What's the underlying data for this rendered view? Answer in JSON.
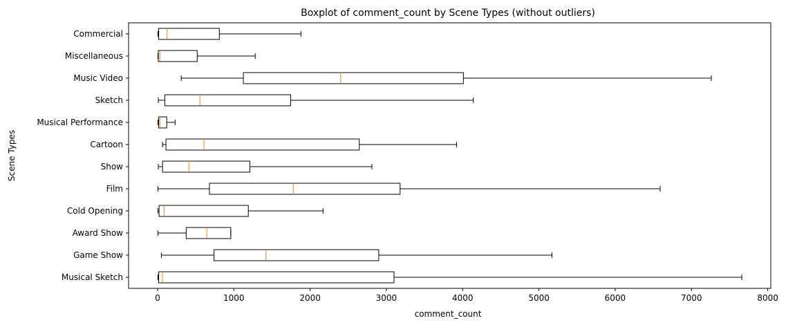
{
  "chart_data": {
    "type": "boxplot",
    "orientation": "horizontal",
    "title": "Boxplot of comment_count by Scene Types (without outliers)",
    "xlabel": "comment_count",
    "ylabel": "Scene Types",
    "xlim": [
      -380,
      8040
    ],
    "xticks": [
      0,
      1000,
      2000,
      3000,
      4000,
      5000,
      6000,
      7000,
      8000
    ],
    "grid": false,
    "colors": {
      "box": "#000000",
      "median": "#ff7f0e"
    },
    "boxes": [
      {
        "label": "Commercial",
        "whislo": 5,
        "q1": 15,
        "med": 125,
        "q3": 810,
        "whishi": 1880
      },
      {
        "label": "Miscellaneous",
        "whislo": 5,
        "q1": 10,
        "med": 30,
        "q3": 520,
        "whishi": 1280
      },
      {
        "label": "Music Video",
        "whislo": 310,
        "q1": 1125,
        "med": 2400,
        "q3": 4010,
        "whishi": 7260
      },
      {
        "label": "Sketch",
        "whislo": 10,
        "q1": 95,
        "med": 555,
        "q3": 1745,
        "whishi": 4140
      },
      {
        "label": "Musical Performance",
        "whislo": 5,
        "q1": 15,
        "med": 30,
        "q3": 120,
        "whishi": 230
      },
      {
        "label": "Cartoon",
        "whislo": 65,
        "q1": 110,
        "med": 610,
        "q3": 2645,
        "whishi": 3920
      },
      {
        "label": "Show",
        "whislo": 10,
        "q1": 65,
        "med": 410,
        "q3": 1210,
        "whishi": 2810
      },
      {
        "label": "Film",
        "whislo": 5,
        "q1": 680,
        "med": 1780,
        "q3": 3180,
        "whishi": 6590
      },
      {
        "label": "Cold Opening",
        "whislo": 5,
        "q1": 20,
        "med": 85,
        "q3": 1190,
        "whishi": 2170
      },
      {
        "label": "Award Show",
        "whislo": 5,
        "q1": 375,
        "med": 645,
        "q3": 960,
        "whishi": 960
      },
      {
        "label": "Game Show",
        "whislo": 50,
        "q1": 740,
        "med": 1420,
        "q3": 2900,
        "whishi": 5170
      },
      {
        "label": "Musical Sketch",
        "whislo": 5,
        "q1": 15,
        "med": 65,
        "q3": 3100,
        "whishi": 7660
      }
    ]
  }
}
